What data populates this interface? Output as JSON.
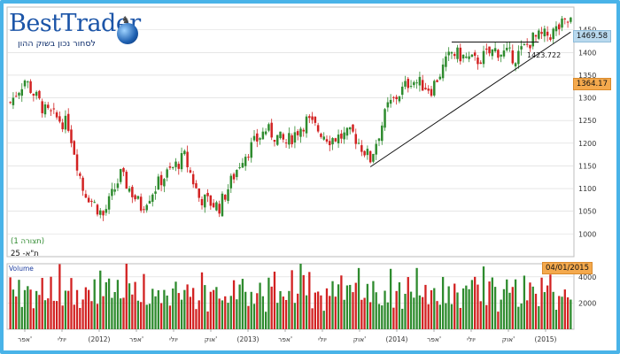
{
  "logo": {
    "brand": "BestTrader",
    "tagline": "לסחור נכון בשוק ההון"
  },
  "labels": {
    "index_name": "ת\"א- 25",
    "period": "(תצורה 1)",
    "volume_title": "Volume",
    "current_price": "1469.58",
    "marker_price": "1364.17",
    "swing_low": "1423.722",
    "last_date": "04/01/2015"
  },
  "colors": {
    "up": "#2e8b2e",
    "down": "#d22222",
    "frame": "#49b3e8",
    "grid": "#d8d8d8",
    "trendline": "#111111"
  },
  "chart_data": [
    {
      "type": "candlestick",
      "title": "",
      "ylim": [
        950,
        1500
      ],
      "y_ticks": [
        1000,
        1050,
        1100,
        1150,
        1200,
        1250,
        1300,
        1350,
        1400,
        1450
      ],
      "x_tick_labels": [
        "אפר'",
        "יולי",
        "(2012)",
        "אפר'",
        "יולי",
        "אוק'",
        "(2013)",
        "אפר'",
        "יולי",
        "אוק'",
        "(2014)",
        "אפר'",
        "יולי",
        "אוק'",
        "(2015)"
      ],
      "close_anchors": [
        [
          0,
          1290
        ],
        [
          5,
          1340
        ],
        [
          12,
          1270
        ],
        [
          20,
          1240
        ],
        [
          25,
          1100
        ],
        [
          32,
          1040
        ],
        [
          38,
          1130
        ],
        [
          45,
          1060
        ],
        [
          52,
          1120
        ],
        [
          60,
          1170
        ],
        [
          65,
          1080
        ],
        [
          72,
          1060
        ],
        [
          80,
          1170
        ],
        [
          88,
          1230
        ],
        [
          95,
          1200
        ],
        [
          102,
          1250
        ],
        [
          110,
          1210
        ],
        [
          118,
          1220
        ],
        [
          124,
          1165
        ],
        [
          130,
          1280
        ],
        [
          138,
          1340
        ],
        [
          145,
          1320
        ],
        [
          152,
          1400
        ],
        [
          160,
          1380
        ],
        [
          167,
          1405
        ],
        [
          174,
          1390
        ],
        [
          180,
          1430
        ],
        [
          186,
          1440
        ],
        [
          190,
          1460
        ],
        [
          193,
          1470
        ]
      ],
      "trendlines": [
        {
          "from": [
            124,
            1148
          ],
          "to": [
            193,
            1445
          ]
        },
        {
          "from": [
            152,
            1423
          ],
          "to": [
            182,
            1423
          ]
        }
      ]
    },
    {
      "type": "bar",
      "title": "Volume",
      "ylim": [
        0,
        5000
      ],
      "y_ticks": [
        2000,
        4000
      ],
      "values_pattern": [
        4100,
        3200,
        2500,
        3800,
        2200,
        2900,
        3400,
        2600,
        1900,
        3100,
        2700,
        3600,
        2300,
        2800,
        3300,
        2000,
        2600,
        3900,
        2400,
        3000
      ]
    }
  ]
}
